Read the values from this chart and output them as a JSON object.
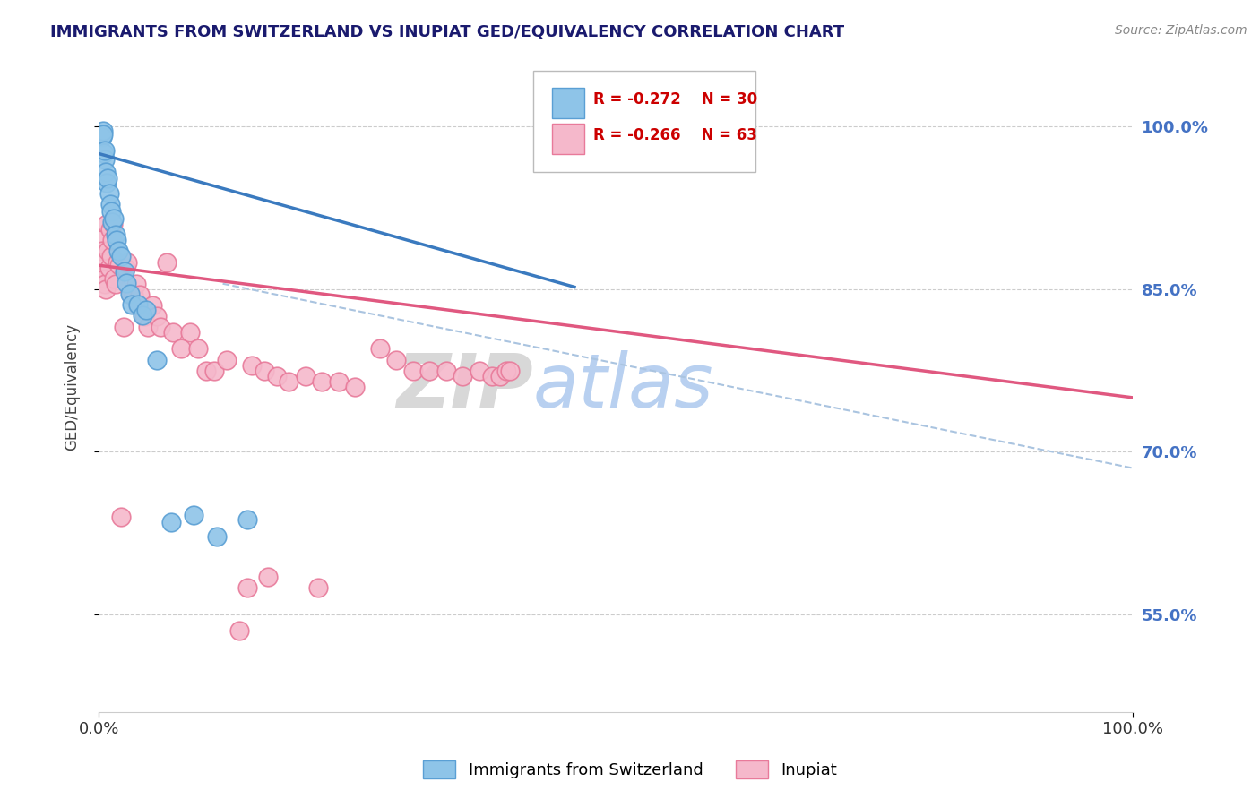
{
  "title": "IMMIGRANTS FROM SWITZERLAND VS INUPIAT GED/EQUIVALENCY CORRELATION CHART",
  "source": "Source: ZipAtlas.com",
  "ylabel": "GED/Equivalency",
  "xlim": [
    0.0,
    1.0
  ],
  "ylim": [
    0.46,
    1.06
  ],
  "yticks": [
    0.55,
    0.7,
    0.85,
    1.0
  ],
  "ytick_labels": [
    "55.0%",
    "70.0%",
    "85.0%",
    "100.0%"
  ],
  "xtick_labels": [
    "0.0%",
    "100.0%"
  ],
  "legend_r_swiss": "-0.272",
  "legend_n_swiss": "30",
  "legend_r_inupiat": "-0.266",
  "legend_n_inupiat": "63",
  "color_swiss": "#8ec4e8",
  "color_swiss_edge": "#5a9fd4",
  "color_inupiat": "#f5b8cb",
  "color_inupiat_edge": "#e87a9a",
  "color_swiss_line": "#3a7abf",
  "color_inupiat_line": "#e05880",
  "color_dashed": "#aac4e0",
  "watermark_zip": "ZIP",
  "watermark_atlas": "atlas",
  "swiss_x": [
    0.003,
    0.004,
    0.004,
    0.005,
    0.006,
    0.006,
    0.007,
    0.008,
    0.009,
    0.01,
    0.011,
    0.012,
    0.013,
    0.015,
    0.016,
    0.017,
    0.019,
    0.022,
    0.025,
    0.027,
    0.03,
    0.032,
    0.038,
    0.042,
    0.046,
    0.056,
    0.07,
    0.092,
    0.114,
    0.144
  ],
  "swiss_y": [
    0.99,
    0.996,
    0.993,
    0.975,
    0.97,
    0.978,
    0.958,
    0.948,
    0.952,
    0.938,
    0.928,
    0.922,
    0.912,
    0.915,
    0.9,
    0.895,
    0.885,
    0.88,
    0.866,
    0.856,
    0.846,
    0.836,
    0.836,
    0.826,
    0.831,
    0.785,
    0.635,
    0.642,
    0.622,
    0.638
  ],
  "inupiat_x": [
    0.002,
    0.003,
    0.004,
    0.005,
    0.006,
    0.006,
    0.007,
    0.008,
    0.009,
    0.01,
    0.011,
    0.012,
    0.013,
    0.014,
    0.015,
    0.016,
    0.018,
    0.02,
    0.022,
    0.024,
    0.026,
    0.028,
    0.031,
    0.034,
    0.036,
    0.038,
    0.04,
    0.044,
    0.048,
    0.052,
    0.056,
    0.06,
    0.066,
    0.072,
    0.08,
    0.088,
    0.096,
    0.104,
    0.112,
    0.124,
    0.136,
    0.148,
    0.16,
    0.172,
    0.184,
    0.2,
    0.216,
    0.232,
    0.248,
    0.272,
    0.288,
    0.304,
    0.32,
    0.336,
    0.352,
    0.368,
    0.38,
    0.388,
    0.394,
    0.398,
    0.144,
    0.164,
    0.212
  ],
  "inupiat_y": [
    0.895,
    0.885,
    0.875,
    0.865,
    0.86,
    0.855,
    0.85,
    0.91,
    0.885,
    0.87,
    0.905,
    0.88,
    0.895,
    0.91,
    0.86,
    0.855,
    0.875,
    0.872,
    0.64,
    0.815,
    0.87,
    0.875,
    0.845,
    0.845,
    0.855,
    0.835,
    0.845,
    0.825,
    0.815,
    0.835,
    0.825,
    0.815,
    0.875,
    0.81,
    0.795,
    0.81,
    0.795,
    0.775,
    0.775,
    0.785,
    0.535,
    0.78,
    0.775,
    0.77,
    0.765,
    0.77,
    0.765,
    0.765,
    0.76,
    0.795,
    0.785,
    0.775,
    0.775,
    0.775,
    0.77,
    0.775,
    0.77,
    0.77,
    0.775,
    0.775,
    0.575,
    0.585,
    0.575
  ],
  "swiss_line_x0": 0.0,
  "swiss_line_x1": 0.46,
  "swiss_line_y0": 0.975,
  "swiss_line_y1": 0.852,
  "inupiat_line_x0": 0.0,
  "inupiat_line_x1": 1.0,
  "inupiat_line_y0": 0.872,
  "inupiat_line_y1": 0.75,
  "dash_line_x0": 0.12,
  "dash_line_x1": 1.0,
  "dash_line_y0": 0.855,
  "dash_line_y1": 0.685
}
